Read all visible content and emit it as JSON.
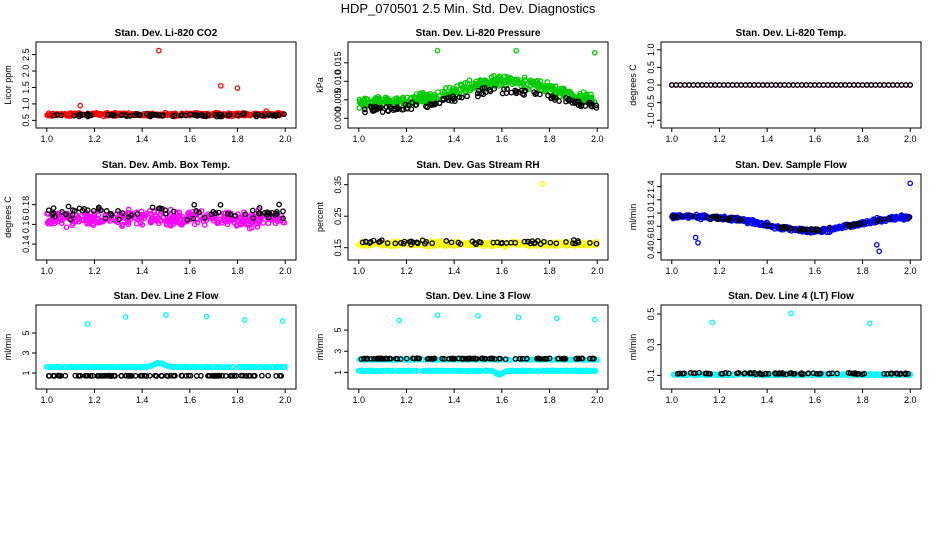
{
  "title": "HDP_070501  2.5 Min. Std. Dev. Diagnostics",
  "colors": {
    "red": "#ff0000",
    "green": "#00cc00",
    "magenta": "#ff00ff",
    "yellow": "#ffff00",
    "blue": "#0000ff",
    "cyan": "#00ffff",
    "black": "#000000"
  },
  "chart_data": [
    {
      "type": "scatter",
      "title": "Stan. Dev. Li-820 CO2",
      "ylabel": "Licor ppm",
      "xlim": [
        0.98,
        2.02
      ],
      "ylim": [
        0.45,
        2.7
      ],
      "xticks": [
        1.0,
        1.2,
        1.4,
        1.6,
        1.8,
        2.0
      ],
      "yticks": [
        0.5,
        1.0,
        1.5,
        2.0,
        2.5
      ],
      "ytick_labels": [
        "0.5",
        "1.0",
        "1.5",
        "2.0",
        "2.5"
      ],
      "series": [
        {
          "name": "main",
          "color": "#ff0000",
          "gen": {
            "n": 360,
            "base": 0.68,
            "noise": 0.07,
            "wave": []
          }
        },
        {
          "name": "secondary",
          "color": "#000000",
          "gen": {
            "n": 80,
            "base": 0.66,
            "noise": 0.06,
            "wave": []
          }
        },
        {
          "name": "outliers",
          "color": "#ff0000",
          "points": [
            [
              1.14,
              0.95
            ],
            [
              1.47,
              2.62
            ],
            [
              1.73,
              1.55
            ],
            [
              1.8,
              1.48
            ],
            [
              1.92,
              0.78
            ]
          ]
        }
      ]
    },
    {
      "type": "scatter",
      "title": "Stan. Dev. Li-820 Pressure",
      "ylabel": "kPa",
      "xlim": [
        0.98,
        2.02
      ],
      "ylim": [
        -0.001,
        0.019
      ],
      "xticks": [
        1.0,
        1.2,
        1.4,
        1.6,
        1.8,
        2.0
      ],
      "yticks": [
        0.0,
        0.005,
        0.01,
        0.015
      ],
      "ytick_labels": [
        "0.000",
        "0.005",
        "0.010",
        "0.015"
      ],
      "series": [
        {
          "name": "main",
          "color": "#00cc00",
          "gen": {
            "n": 420,
            "base": 0.004,
            "noise": 0.0022,
            "clipMin": 0.0,
            "wave": [
              {
                "center": 1.62,
                "width": 0.28,
                "amp": 0.006
              }
            ]
          }
        },
        {
          "name": "secondary",
          "color": "#000000",
          "gen": {
            "n": 120,
            "base": 0.0025,
            "noise": 0.0015,
            "clipMin": 0.0,
            "wave": [
              {
                "center": 1.62,
                "width": 0.28,
                "amp": 0.005
              }
            ]
          }
        },
        {
          "name": "outliers",
          "color": "#00cc00",
          "points": [
            [
              1.33,
              0.0183
            ],
            [
              1.66,
              0.0183
            ],
            [
              1.99,
              0.0177
            ]
          ]
        }
      ]
    },
    {
      "type": "scatter",
      "title": "Stan. Dev. Li-820 Temp.",
      "ylabel": "degrees C",
      "xlim": [
        0.98,
        2.02
      ],
      "ylim": [
        -1.05,
        1.05
      ],
      "xticks": [
        1.0,
        1.2,
        1.4,
        1.6,
        1.8,
        2.0
      ],
      "yticks": [
        -1.0,
        -0.5,
        0.0,
        0.5,
        1.0
      ],
      "ytick_labels": [
        "-1.0",
        "-0.5",
        "0.0",
        "0.5",
        "1.0"
      ],
      "series": [
        {
          "name": "main",
          "color": "#ff00ff",
          "gen": {
            "n": 56,
            "base": 0.0,
            "noise": 0.0,
            "wave": [],
            "even": true
          }
        },
        {
          "name": "secondary",
          "color": "#000000",
          "gen": {
            "n": 56,
            "base": 0.0,
            "noise": 0.0,
            "wave": [],
            "even": true
          }
        }
      ]
    },
    {
      "type": "scatter",
      "title": "Stan. Dev. Amb. Box Temp.",
      "ylabel": "degrees C",
      "xlim": [
        0.98,
        2.02
      ],
      "ylim": [
        0.13,
        0.205
      ],
      "xticks": [
        1.0,
        1.2,
        1.4,
        1.6,
        1.8,
        2.0
      ],
      "yticks": [
        0.14,
        0.16,
        0.18
      ],
      "ytick_labels": [
        "0.14",
        "0.16",
        "0.18"
      ],
      "series": [
        {
          "name": "main",
          "color": "#ff00ff",
          "gen": {
            "n": 380,
            "base": 0.166,
            "noise": 0.012,
            "wave": []
          }
        },
        {
          "name": "secondary",
          "color": "#000000",
          "gen": {
            "n": 70,
            "base": 0.172,
            "noise": 0.01,
            "wave": []
          }
        }
      ]
    },
    {
      "type": "scatter",
      "title": "Stan. Dev. Gas Stream RH",
      "ylabel": "percent",
      "xlim": [
        0.98,
        2.02
      ],
      "ylim": [
        0.13,
        0.365
      ],
      "xticks": [
        1.0,
        1.2,
        1.4,
        1.6,
        1.8,
        2.0
      ],
      "yticks": [
        0.15,
        0.25,
        0.35
      ],
      "ytick_labels": [
        "0.15",
        "0.25",
        "0.35"
      ],
      "series": [
        {
          "name": "main",
          "color": "#ffff00",
          "gen": {
            "n": 420,
            "base": 0.162,
            "noise": 0.011,
            "wave": []
          }
        },
        {
          "name": "secondary",
          "color": "#000000",
          "gen": {
            "n": 60,
            "base": 0.167,
            "noise": 0.009,
            "wave": []
          }
        },
        {
          "name": "outliers",
          "color": "#ffff00",
          "points": [
            [
              1.77,
              0.352
            ]
          ]
        }
      ]
    },
    {
      "type": "scatter",
      "title": "Stan. Dev. Sample Flow",
      "ylabel": "ml/min",
      "xlim": [
        0.98,
        2.02
      ],
      "ylim": [
        0.38,
        1.5
      ],
      "xticks": [
        1.0,
        1.2,
        1.4,
        1.6,
        1.8,
        2.0
      ],
      "yticks": [
        0.4,
        0.6,
        0.8,
        1.0,
        1.2,
        1.4
      ],
      "ytick_labels": [
        "0.4",
        "0.6",
        "0.8",
        "1.0",
        "1.2",
        "1.4"
      ],
      "series": [
        {
          "name": "main",
          "color": "#0000ff",
          "gen": {
            "n": 420,
            "base": 0.95,
            "noise": 0.05,
            "wave": [
              {
                "center": 1.58,
                "width": 0.25,
                "amp": -0.22
              }
            ]
          }
        },
        {
          "name": "secondary",
          "color": "#000000",
          "gen": {
            "n": 60,
            "base": 0.94,
            "noise": 0.04,
            "wave": [
              {
                "center": 1.58,
                "width": 0.25,
                "amp": -0.2
              }
            ]
          }
        },
        {
          "name": "outliers",
          "color": "#0000ff",
          "points": [
            [
              1.1,
              0.63
            ],
            [
              1.11,
              0.55
            ],
            [
              1.86,
              0.52
            ],
            [
              1.87,
              0.42
            ],
            [
              2.0,
              1.45
            ]
          ]
        }
      ]
    },
    {
      "type": "scatter",
      "title": "Stan. Dev. Line 2 Flow",
      "ylabel": "ml/min",
      "xlim": [
        0.98,
        2.02
      ],
      "ylim": [
        0.0,
        7.2
      ],
      "xticks": [
        1.0,
        1.2,
        1.4,
        1.6,
        1.8,
        2.0
      ],
      "yticks": [
        1,
        3,
        5
      ],
      "ytick_labels": [
        "1",
        "3",
        "5"
      ],
      "series": [
        {
          "name": "main",
          "color": "#00ffff",
          "gen": {
            "n": 360,
            "base": 1.6,
            "noise": 0.05,
            "wave": [
              {
                "center": 1.47,
                "width": 0.03,
                "amp": 0.4
              }
            ]
          }
        },
        {
          "name": "secondary",
          "color": "#000000",
          "gen": {
            "n": 110,
            "base": 0.72,
            "noise": 0.03,
            "wave": []
          }
        },
        {
          "name": "outliers",
          "color": "#00ffff",
          "points": [
            [
              1.17,
              5.9
            ],
            [
              1.33,
              6.6
            ],
            [
              1.5,
              6.8
            ],
            [
              1.67,
              6.65
            ],
            [
              1.83,
              6.3
            ],
            [
              1.99,
              6.2
            ]
          ]
        }
      ]
    },
    {
      "type": "scatter",
      "title": "Stan. Dev. Line 3 Flow",
      "ylabel": "ml/min",
      "xlim": [
        0.98,
        2.02
      ],
      "ylim": [
        0.0,
        6.8
      ],
      "xticks": [
        1.0,
        1.2,
        1.4,
        1.6,
        1.8,
        2.0
      ],
      "yticks": [
        1,
        3,
        5
      ],
      "ytick_labels": [
        "1",
        "3",
        "5"
      ],
      "series": [
        {
          "name": "main",
          "color": "#00ffff",
          "gen": {
            "n": 380,
            "base": 1.15,
            "noise": 0.05,
            "wave": [
              {
                "center": 1.59,
                "width": 0.02,
                "amp": -0.35
              }
            ]
          }
        },
        {
          "name": "band",
          "color": "#00ffff",
          "gen": {
            "n": 200,
            "base": 2.2,
            "noise": 0.05,
            "wave": []
          }
        },
        {
          "name": "secondary",
          "color": "#000000",
          "gen": {
            "n": 110,
            "base": 2.3,
            "noise": 0.06,
            "wave": []
          }
        },
        {
          "name": "outliers",
          "color": "#00ffff",
          "points": [
            [
              1.17,
              5.9
            ],
            [
              1.33,
              6.4
            ],
            [
              1.5,
              6.35
            ],
            [
              1.67,
              6.2
            ],
            [
              1.83,
              6.1
            ],
            [
              1.99,
              6.0
            ]
          ]
        }
      ]
    },
    {
      "type": "scatter",
      "title": "Stan. Dev. Line 4 (LT) Flow",
      "ylabel": "ml/min",
      "xlim": [
        0.98,
        2.02
      ],
      "ylim": [
        0.05,
        0.52
      ],
      "xticks": [
        1.0,
        1.2,
        1.4,
        1.6,
        1.8,
        2.0
      ],
      "yticks": [
        0.1,
        0.3,
        0.5
      ],
      "ytick_labels": [
        "0.1",
        "0.3",
        "0.5"
      ],
      "series": [
        {
          "name": "main",
          "color": "#00ffff",
          "gen": {
            "n": 380,
            "base": 0.105,
            "noise": 0.008,
            "wave": []
          }
        },
        {
          "name": "secondary",
          "color": "#000000",
          "gen": {
            "n": 90,
            "base": 0.112,
            "noise": 0.008,
            "wave": []
          }
        },
        {
          "name": "outliers",
          "color": "#00ffff",
          "points": [
            [
              1.17,
              0.445
            ],
            [
              1.5,
              0.505
            ],
            [
              1.83,
              0.44
            ]
          ]
        }
      ]
    }
  ]
}
